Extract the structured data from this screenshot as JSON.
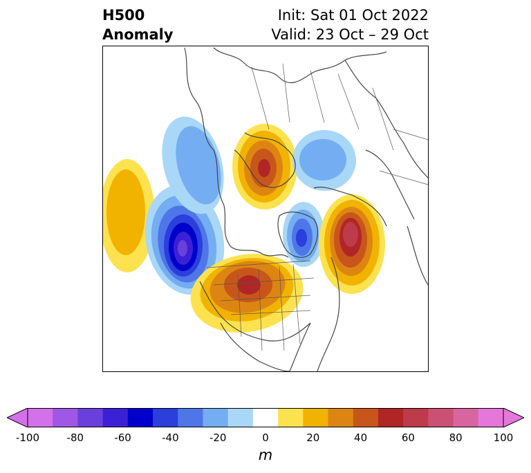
{
  "title": {
    "left_line1": "H500",
    "left_line2": "Anomaly",
    "right_line1": "Init: Sat 01 Oct 2022",
    "right_line2": "Valid: 23 Oct – 29 Oct"
  },
  "colorbar": {
    "unit": "m",
    "ticks": [
      "-100",
      "-80",
      "-60",
      "-40",
      "-20",
      "0",
      "20",
      "40",
      "60",
      "80",
      "100"
    ],
    "levels": [
      -100,
      -90,
      -80,
      -70,
      -60,
      -50,
      -40,
      -30,
      -20,
      -10,
      10,
      20,
      30,
      40,
      50,
      60,
      70,
      80,
      90,
      100
    ],
    "colors": [
      "#d371eb",
      "#9e58e5",
      "#6a40dc",
      "#3c20d6",
      "#0000cd",
      "#2a3fdc",
      "#4f76e8",
      "#74adf2",
      "#a9d7f7",
      "#ffffff",
      "#fde24f",
      "#f1b300",
      "#dd8512",
      "#c8561b",
      "#b02626",
      "#bd3b4b",
      "#cb5174",
      "#d965a0",
      "#e677da"
    ],
    "min_extend_color": "#d371eb",
    "max_extend_color": "#e677da"
  },
  "anomaly_centers": [
    {
      "region": "Central North Pacific",
      "value_m": 30
    },
    {
      "region": "Gulf of Alaska",
      "value_m": -70
    },
    {
      "region": "Western Canada",
      "value_m": -30
    },
    {
      "region": "Central Canada / Hudson Bay",
      "value_m": 70
    },
    {
      "region": "Siberia",
      "value_m": 60
    },
    {
      "region": "Central Arctic",
      "value_m": -20
    },
    {
      "region": "Greenland",
      "value_m": -50
    },
    {
      "region": "North Atlantic",
      "value_m": 70
    }
  ]
}
